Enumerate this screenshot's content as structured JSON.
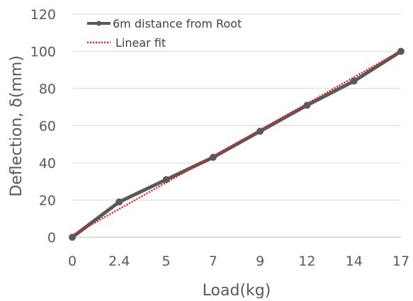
{
  "chart_data": {
    "type": "line",
    "title": "",
    "xlabel": "Load(kg)",
    "ylabel": "Deflection, δ(mm)",
    "categories": [
      "0",
      "2.4",
      "5",
      "7",
      "9",
      "12",
      "14",
      "17"
    ],
    "ylim": [
      0,
      120
    ],
    "yticks": [
      0,
      20,
      40,
      60,
      80,
      100,
      120
    ],
    "grid": true,
    "legend_position": "top-left",
    "series": [
      {
        "name": "6m distance from Root",
        "style": "solid-with-markers",
        "color": "#595959",
        "values": [
          0,
          19,
          31,
          43,
          57,
          71,
          84,
          100
        ]
      },
      {
        "name": "Linear fit",
        "style": "dotted",
        "color": "#e41a1c",
        "values": [
          1,
          15.2,
          29.4,
          43.6,
          57.8,
          71.9,
          86.1,
          100.3
        ]
      }
    ]
  }
}
